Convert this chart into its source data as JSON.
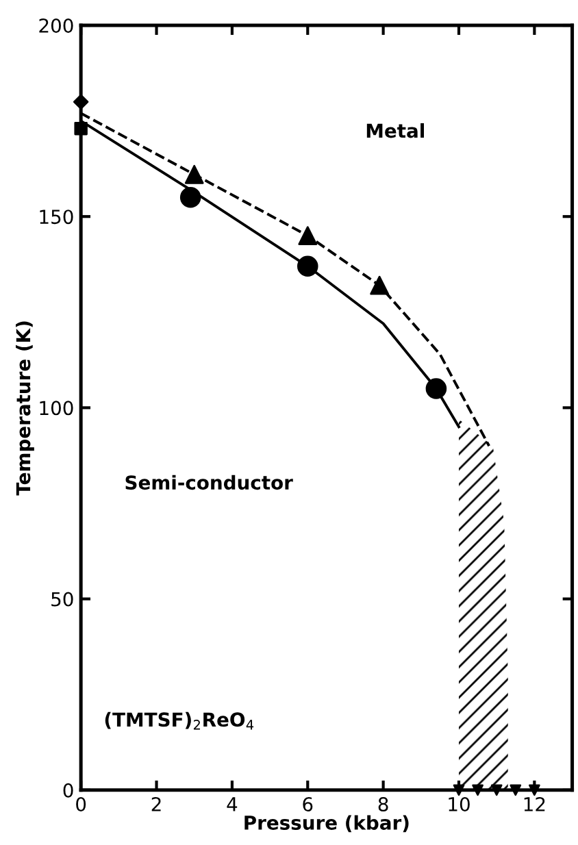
{
  "chart_data": {
    "type": "line",
    "xlabel": "Pressure (kbar)",
    "ylabel": "Temperature (K)",
    "xlim": [
      0,
      13
    ],
    "ylim": [
      0,
      200
    ],
    "xticks": [
      0,
      2,
      4,
      6,
      8,
      10,
      12
    ],
    "yticks": [
      0,
      50,
      100,
      150,
      200
    ],
    "grid": false,
    "legend": false,
    "annotations": [
      "Metal",
      "Semi-conductor",
      "(TMTSF)$_{2}$ReO$_{4}$"
    ],
    "series": [
      {
        "color": "#000000",
        "line_style": "solid",
        "marker": "none",
        "x": [
          0,
          2.9,
          6,
          8,
          9.4,
          10
        ],
        "values": [
          175,
          157,
          137,
          122,
          105,
          95
        ]
      },
      {
        "color": "#000000",
        "line_style": "dashed",
        "marker": "none",
        "x": [
          0,
          3,
          6,
          7.9,
          9.5,
          10.8
        ],
        "values": [
          177,
          161,
          145,
          132,
          114,
          90
        ]
      },
      {
        "type": "area",
        "color": "#000000",
        "x": [
          10,
          10.9,
          11.2,
          11.3,
          11.3
        ],
        "values": [
          97,
          90,
          70,
          30,
          0
        ]
      },
      {
        "type": "scatter",
        "color": "#000000",
        "marker": "circle",
        "x": [
          2.9,
          6,
          9.4
        ],
        "values": [
          155,
          137,
          105
        ]
      },
      {
        "type": "scatter",
        "color": "#000000",
        "marker": "triangle",
        "x": [
          3,
          6,
          7.9
        ],
        "values": [
          161,
          145,
          132
        ]
      },
      {
        "type": "scatter",
        "color": "#000000",
        "marker": "diamond",
        "x": [
          0
        ],
        "values": [
          180
        ]
      },
      {
        "type": "scatter",
        "color": "#000000",
        "marker": "square",
        "x": [
          0
        ],
        "values": [
          173
        ]
      },
      {
        "type": "scatter",
        "color": "#000000",
        "marker": "triangle_down",
        "x": [
          10,
          10.5,
          11,
          11.5,
          12
        ],
        "values": [
          0,
          0,
          0,
          0,
          0
        ]
      }
    ]
  }
}
